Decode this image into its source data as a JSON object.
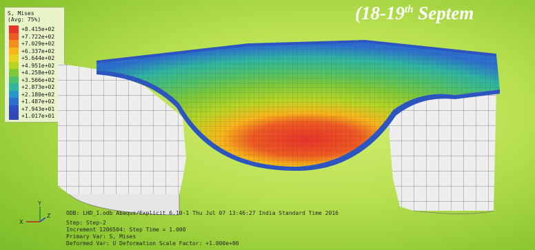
{
  "title": {
    "prefix": "(18-19",
    "sup": "th",
    "suffix": " Septem"
  },
  "legend": {
    "heading": [
      "S, Mises",
      "(Avg: 75%)"
    ],
    "entries": [
      {
        "label": "+8.415e+02",
        "color": "#e8322a"
      },
      {
        "label": "+7.722e+02",
        "color": "#ef5a22"
      },
      {
        "label": "+7.029e+02",
        "color": "#f58a1d"
      },
      {
        "label": "+6.337e+02",
        "color": "#f7b51b"
      },
      {
        "label": "+5.644e+02",
        "color": "#e6d41c"
      },
      {
        "label": "+4.951e+02",
        "color": "#b7d425"
      },
      {
        "label": "+4.258e+02",
        "color": "#7ec83a"
      },
      {
        "label": "+3.566e+02",
        "color": "#4fc06b"
      },
      {
        "label": "+2.873e+02",
        "color": "#2fb5a2"
      },
      {
        "label": "+2.180e+02",
        "color": "#2a95c8"
      },
      {
        "label": "+1.487e+02",
        "color": "#2c6fcf"
      },
      {
        "label": "+7.943e+01",
        "color": "#2f4dc5"
      },
      {
        "label": "+1.017e+01",
        "color": "#3346b5"
      }
    ]
  },
  "info": {
    "odb": "ODB: LHD_1.odb    Abaqus/Explicit 6.10-1    Thu Jul 07 13:46:27 India Standard Time 2016",
    "step": "Step: Step-2",
    "increment": "Increment   1206504: Step Time =    1.000",
    "primary": "Primary Var: S, Mises",
    "deformed": "Deformed Var: U   Deformation Scale Factor: +1.000e+00"
  },
  "triad": {
    "x": "X",
    "y": "Y",
    "z": "Z"
  }
}
